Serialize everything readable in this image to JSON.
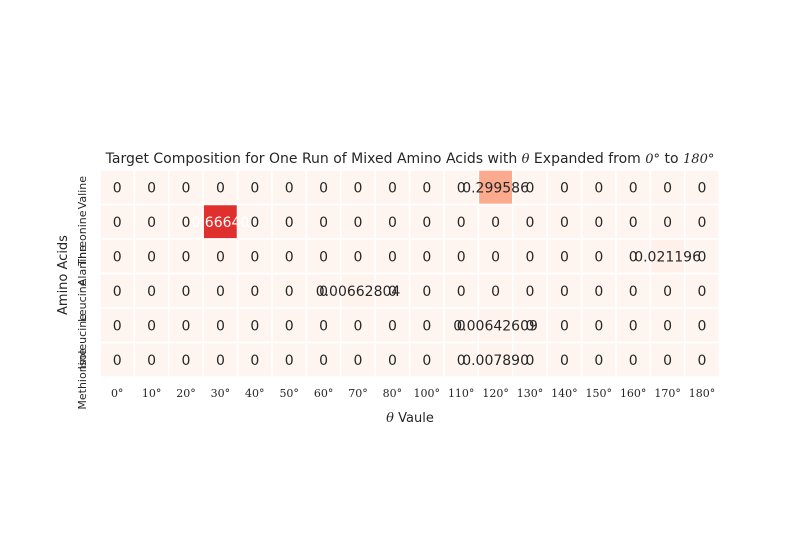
{
  "chart_data": {
    "type": "heatmap",
    "title_parts": [
      "Target Composition for One Run of Mixed Amino Acids with ",
      "θ",
      " Expanded from ",
      "0°",
      " to ",
      "180°"
    ],
    "xlabel_parts": [
      "θ",
      " Vaule"
    ],
    "ylabel": "Amino Acids",
    "x": [
      "0°",
      "10°",
      "20°",
      "30°",
      "40°",
      "50°",
      "60°",
      "70°",
      "80°",
      "100°",
      "110°",
      "120°",
      "130°",
      "140°",
      "150°",
      "160°",
      "170°",
      "180°"
    ],
    "y": [
      "Valine",
      "Threonine",
      "Alanine",
      "Leucine",
      "Isoleucine",
      "Methionine"
    ],
    "values": [
      [
        0,
        0,
        0,
        0,
        0,
        0,
        0,
        0,
        0,
        0,
        0,
        0.299586,
        0,
        0,
        0,
        0,
        0,
        0
      ],
      [
        0,
        0,
        0,
        0.6664,
        0,
        0,
        0,
        0,
        0,
        0,
        0,
        0,
        0,
        0,
        0,
        0,
        0,
        0
      ],
      [
        0,
        0,
        0,
        0,
        0,
        0,
        0,
        0,
        0,
        0,
        0,
        0,
        0,
        0,
        0,
        0,
        0.021196,
        0
      ],
      [
        0,
        0,
        0,
        0,
        0,
        0,
        0,
        0.00662804,
        0,
        0,
        0,
        0,
        0,
        0,
        0,
        0,
        0,
        0
      ],
      [
        0,
        0,
        0,
        0,
        0,
        0,
        0,
        0,
        0,
        0,
        0,
        0.00642609,
        0,
        0,
        0,
        0,
        0,
        0
      ],
      [
        0,
        0,
        0,
        0,
        0,
        0,
        0,
        0,
        0,
        0,
        0,
        0.00789,
        0,
        0,
        0,
        0,
        0,
        0
      ]
    ],
    "labels": [
      [
        "0",
        "0",
        "0",
        "0",
        "0",
        "0",
        "0",
        "0",
        "0",
        "0",
        "0",
        "0.299586",
        "0",
        "0",
        "0",
        "0",
        "0",
        "0"
      ],
      [
        "0",
        "0",
        "0",
        "0.66640",
        "0",
        "0",
        "0",
        "0",
        "0",
        "0",
        "0",
        "0",
        "0",
        "0",
        "0",
        "0",
        "0",
        "0"
      ],
      [
        "0",
        "0",
        "0",
        "0",
        "0",
        "0",
        "0",
        "0",
        "0",
        "0",
        "0",
        "0",
        "0",
        "0",
        "0",
        "0",
        "0.021196",
        "0"
      ],
      [
        "0",
        "0",
        "0",
        "0",
        "0",
        "0",
        "0",
        "0.00662804",
        "0",
        "0",
        "0",
        "0",
        "0",
        "0",
        "0",
        "0",
        "0",
        "0"
      ],
      [
        "0",
        "0",
        "0",
        "0",
        "0",
        "0",
        "0",
        "0",
        "0",
        "0",
        "0",
        "0.00642609",
        "0",
        "0",
        "0",
        "0",
        "0",
        "0"
      ],
      [
        "0",
        "0",
        "0",
        "0",
        "0",
        "0",
        "0",
        "0",
        "0",
        "0",
        "0",
        "0.007890",
        "0",
        "0",
        "0",
        "0",
        "0",
        "0"
      ]
    ],
    "colormap": "Reds",
    "color_low": "#fff5f0",
    "color_mid": "#fcaa8e",
    "color_high": "#e0302d",
    "cell_border": "#ffffff",
    "text_dark": "#262626",
    "text_light": "#ffffff",
    "colorbar": false,
    "grid": false
  }
}
